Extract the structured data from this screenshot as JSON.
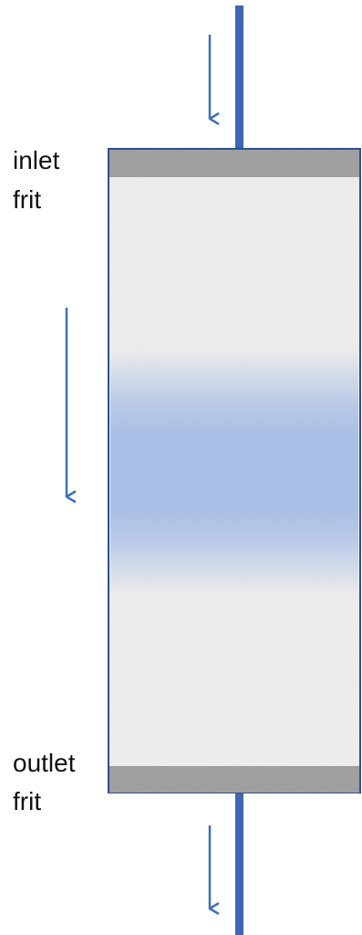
{
  "labels": {
    "inlet_line1": "inlet",
    "inlet_line2": "frit",
    "outlet_line1": "outlet",
    "outlet_line2": "frit"
  },
  "colors": {
    "pipe": "#3e67b1",
    "arrow": "#3e6fb5",
    "column_border": "#2f4f8f",
    "frit": "#9a9a9a",
    "packing": "#f1f1f1",
    "band": "#a9bfe6"
  }
}
